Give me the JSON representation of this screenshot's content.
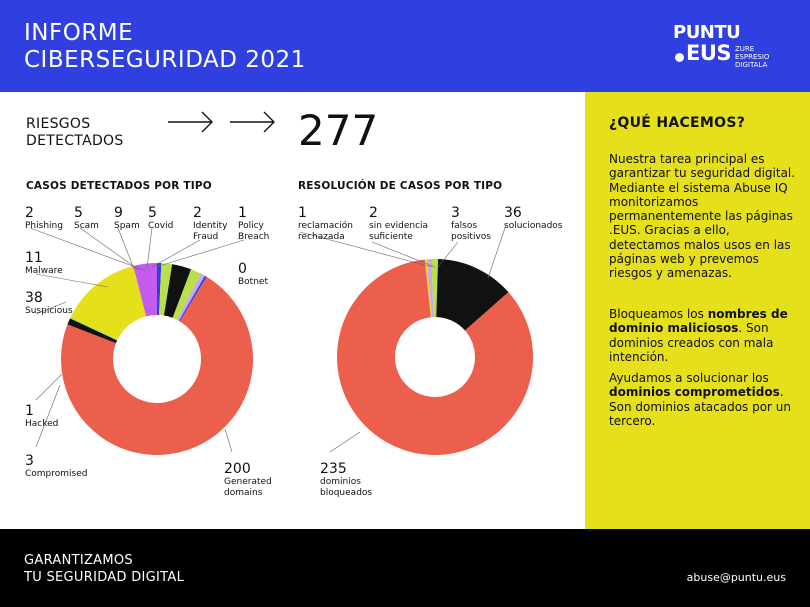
{
  "header": {
    "title_line1": "INFORME",
    "title_line2": "CIBERSEGURIDAD 2021",
    "logo_line1": "PUNTU",
    "logo_line2": "EUS",
    "logo_tag_line1": "ZURE",
    "logo_tag_line2": "ESPRESIO",
    "logo_tag_line3": "DIGITALA"
  },
  "summary": {
    "label_line1": "RIESGOS",
    "label_line2": "DETECTADOS",
    "total": "277"
  },
  "chart_data": [
    {
      "type": "pie",
      "donut": true,
      "title": "CASOS DETECTADOS POR TIPO",
      "slices": [
        {
          "label": "Phishing",
          "value": 2,
          "color": "#2f3fe0"
        },
        {
          "label": "Scam",
          "value": 5,
          "color": "#b7e04a"
        },
        {
          "label": "Spam",
          "value": 9,
          "color": "#111111"
        },
        {
          "label": "Covid",
          "value": 5,
          "color": "#b7e04a"
        },
        {
          "label": "Identity Fraud",
          "value": 2,
          "color": "#c7a6f5"
        },
        {
          "label": "Policy Breach",
          "value": 1,
          "color": "#2f3fe0"
        },
        {
          "label": "Botnet",
          "value": 0,
          "color": "#111111"
        },
        {
          "label": "Generated domains",
          "value": 200,
          "color": "#ec5f4c"
        },
        {
          "label": "Compromised",
          "value": 3,
          "color": "#111111"
        },
        {
          "label": "Hacked",
          "value": 1,
          "color": "#b7e04a"
        },
        {
          "label": "Suspicious",
          "value": 38,
          "color": "#e6df1c"
        },
        {
          "label": "Malware",
          "value": 11,
          "color": "#c55cf0"
        }
      ],
      "callouts": [
        {
          "value": "2",
          "label": "Phishing"
        },
        {
          "value": "5",
          "label": "Scam"
        },
        {
          "value": "9",
          "label": "Spam"
        },
        {
          "value": "5",
          "label": "Covid"
        },
        {
          "value": "2",
          "label": "Identity",
          "label2": "Fraud"
        },
        {
          "value": "1",
          "label": "Policy",
          "label2": "Breach"
        },
        {
          "value": "0",
          "label": "Botnet"
        },
        {
          "value": "11",
          "label": "Malware"
        },
        {
          "value": "38",
          "label": "Suspicious"
        },
        {
          "value": "1",
          "label": "Hacked"
        },
        {
          "value": "3",
          "label": "Compromised"
        },
        {
          "value": "200",
          "label": "Generated",
          "label2": "domains"
        }
      ]
    },
    {
      "type": "pie",
      "donut": true,
      "title": "RESOLUCIÓN DE CASOS POR TIPO",
      "slices": [
        {
          "label": "reclamación rechazada",
          "value": 1,
          "color": "#e6df1c"
        },
        {
          "label": "sin evidencia suficiente",
          "value": 2,
          "color": "#c7a6f5"
        },
        {
          "label": "falsos positivos",
          "value": 3,
          "color": "#b7e04a"
        },
        {
          "label": "solucionados",
          "value": 36,
          "color": "#111111"
        },
        {
          "label": "dominios bloqueados",
          "value": 235,
          "color": "#ec5f4c"
        }
      ],
      "callouts": [
        {
          "value": "1",
          "label": "reclamación",
          "label2": "rechazada"
        },
        {
          "value": "2",
          "label": "sin evidencia",
          "label2": "suficiente"
        },
        {
          "value": "3",
          "label": "falsos",
          "label2": "positivos"
        },
        {
          "value": "36",
          "label": "solucionados"
        },
        {
          "value": "235",
          "label": "dominios",
          "label2": "bloqueados"
        }
      ]
    }
  ],
  "side": {
    "heading": "¿QUÉ HACEMOS?",
    "p1": "Nuestra tarea principal es garantizar tu seguridad digital. Mediante el sistema Abuse IQ monitorizamos permanentemente las páginas .EUS. Gracias a ello, detectamos malos usos en las páginas web y prevemos riesgos y amenazas.",
    "p2_pre": "Bloqueamos los ",
    "p2_bold": "nombres de dominio maliciosos",
    "p2_post": ". Son dominios creados con mala intención.",
    "p3_pre": "Ayudamos a solucionar los ",
    "p3_bold": "dominios comprometidos",
    "p3_post": ". Son dominios atacados por un tercero."
  },
  "footer": {
    "slogan_line1": "GARANTIZAMOS",
    "slogan_line2": "TU SEGURIDAD DIGITAL",
    "email": "abuse@puntu.eus"
  }
}
